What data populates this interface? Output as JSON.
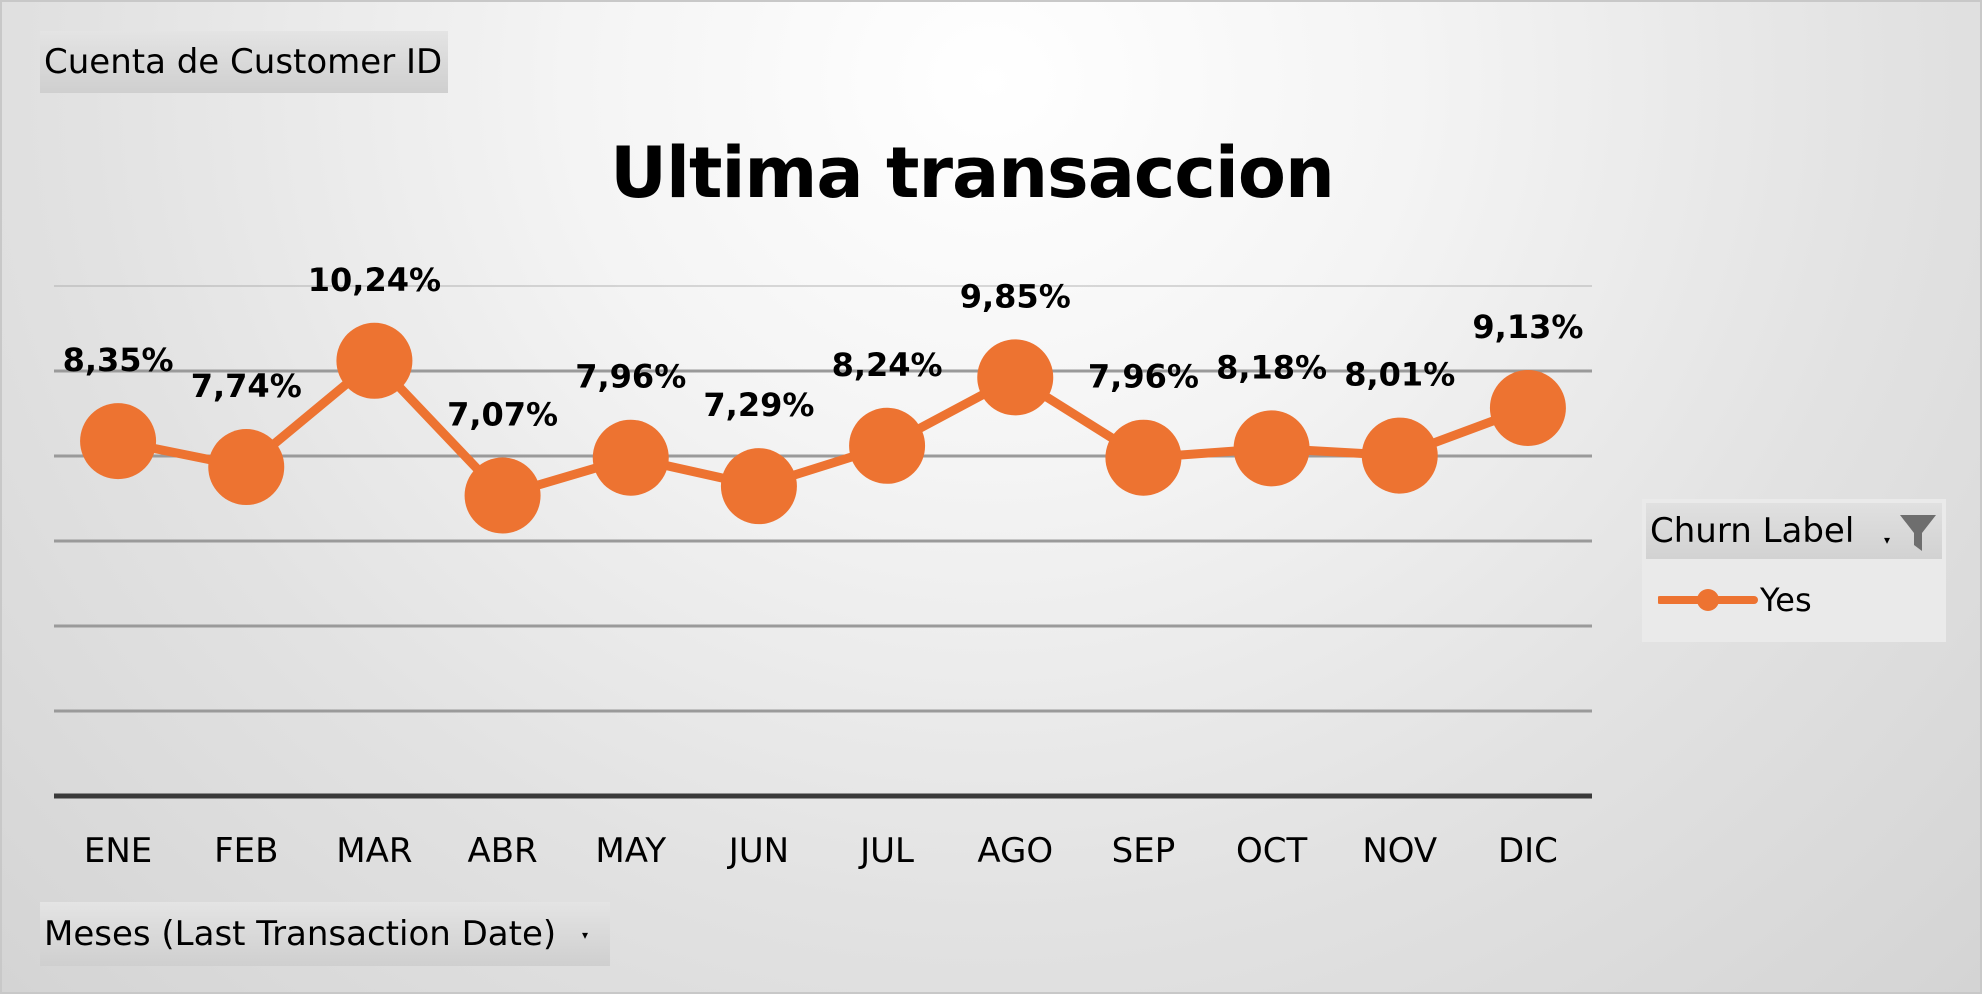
{
  "fields": {
    "values_field": "Cuenta de Customer ID",
    "axis_field": "Meses (Last Transaction Date)",
    "legend_field": "Churn Label"
  },
  "colors": {
    "series": "#ED7331",
    "gridline": "#9a9a9a",
    "axis": "#3a3a3a"
  },
  "chart_data": {
    "type": "line",
    "title": "Ultima transaccion",
    "categories": [
      "ENE",
      "FEB",
      "MAR",
      "ABR",
      "MAY",
      "JUN",
      "JUL",
      "AGO",
      "SEP",
      "OCT",
      "NOV",
      "DIC"
    ],
    "series": [
      {
        "name": "Yes",
        "values": [
          8.35,
          7.74,
          10.24,
          7.07,
          7.96,
          7.29,
          8.24,
          9.85,
          7.96,
          8.18,
          8.01,
          9.13
        ],
        "labels": [
          "8,35%",
          "7,74%",
          "10,24%",
          "7,07%",
          "7,96%",
          "7,29%",
          "8,24%",
          "9,85%",
          "7,96%",
          "8,18%",
          "8,01%",
          "9,13%"
        ]
      }
    ],
    "ylim": [
      0,
      12
    ],
    "gridlines": 6,
    "legend_position": "right",
    "marker": "circle"
  }
}
